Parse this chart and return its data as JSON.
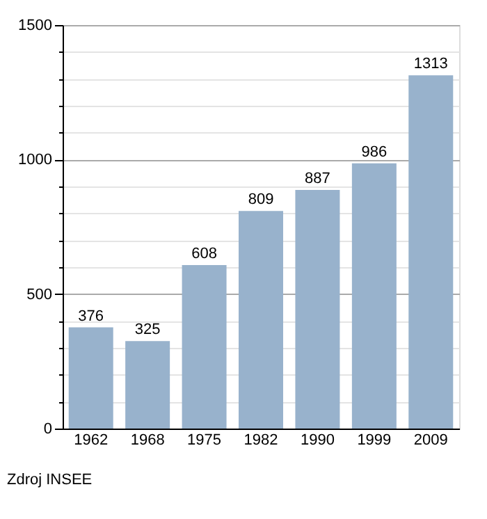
{
  "chart_data": {
    "type": "bar",
    "categories": [
      "1962",
      "1968",
      "1975",
      "1982",
      "1990",
      "1999",
      "2009"
    ],
    "values": [
      376,
      325,
      608,
      809,
      887,
      986,
      1313
    ],
    "color": "#98b2cc",
    "ylim": [
      0,
      1500
    ],
    "yticks": [
      0,
      {
        "value": 100,
        "label": null
      },
      {
        "value": 200,
        "label": null
      },
      {
        "value": 300,
        "label": null
      },
      {
        "value": 400,
        "label": null
      },
      500,
      {
        "value": 600,
        "label": null
      },
      {
        "value": 700,
        "label": null
      },
      {
        "value": 800,
        "label": null
      },
      {
        "value": 900,
        "label": null
      },
      1000,
      {
        "value": 1100,
        "label": null
      },
      {
        "value": 1200,
        "label": null
      },
      {
        "value": 1300,
        "label": null
      },
      {
        "value": 1400,
        "label": null
      },
      1500
    ],
    "grid": true,
    "data_labels": true,
    "annotations": [
      "Zdroj INSEE"
    ]
  }
}
